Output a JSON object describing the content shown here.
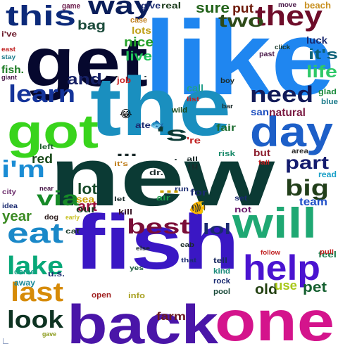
{
  "words": [
    {
      "text": "like",
      "color": "#1f86f0"
    },
    {
      "text": "get",
      "color": "#06082e"
    },
    {
      "text": "the",
      "color": "#1a8fbf"
    },
    {
      "text": "new",
      "color": "#0b3a34"
    },
    {
      "text": "fish",
      "color": "#3a17c4"
    },
    {
      "text": "back",
      "color": "#4a15a8"
    },
    {
      "text": "one",
      "color": "#d4148c"
    },
    {
      "text": "got",
      "color": "#38d41c"
    },
    {
      "text": "day",
      "color": "#1d5fc8"
    },
    {
      "text": "will",
      "color": "#1fa873"
    },
    {
      "text": "this",
      "color": "#0c2a7a"
    },
    {
      "text": "they",
      "color": "#6e0d2a"
    },
    {
      "text": "way",
      "color": "#0a1e5a"
    },
    {
      "text": "help",
      "color": "#4a13d0"
    },
    {
      "text": "eat",
      "color": "#1a88c8"
    },
    {
      "text": "last",
      "color": "#d68b08"
    },
    {
      "text": "lake",
      "color": "#08a878"
    },
    {
      "text": "look",
      "color": "#0e3322"
    },
    {
      "text": "learn",
      "color": "#14349a"
    },
    {
      "text": "need",
      "color": "#121a58"
    },
    {
      "text": "best",
      "color": "#7a0e38"
    },
    {
      "text": "big",
      "color": "#223f1a"
    },
    {
      "text": "part",
      "color": "#141c6e"
    },
    {
      "text": "i'm",
      "color": "#1a8cd4"
    },
    {
      "text": "via",
      "color": "#178a28"
    },
    {
      "text": "two",
      "color": "#2d4a18"
    },
    {
      "text": "it's",
      "color": "#0c6078"
    },
    {
      "text": "life",
      "color": "#2ec868"
    },
    {
      "text": "lol",
      "color": "#1a2a70"
    },
    {
      "text": "old",
      "color": "#234012"
    },
    {
      "text": "use",
      "color": "#a8c81a"
    },
    {
      "text": "pet",
      "color": "#156030"
    },
    {
      "text": "sure",
      "color": "#22631a"
    },
    {
      "text": "put",
      "color": "#6e1a0a"
    },
    {
      "text": "and",
      "color": "#162064"
    },
    {
      "text": "year",
      "color": "#3a8a22"
    },
    {
      "text": "lot",
      "color": "#184a2a"
    },
    {
      "text": "art",
      "color": "#9a0e3a"
    },
    {
      "text": "sea",
      "color": "#c8a000"
    },
    {
      "text": "our",
      "color": "#1a3a22"
    },
    {
      "text": "farm",
      "color": "#6a1a22"
    },
    {
      "text": "bag",
      "color": "#1a4a3a"
    },
    {
      "text": "nice",
      "color": "#24a028"
    },
    {
      "text": "live",
      "color": "#1ec058"
    },
    {
      "text": "lots",
      "color": "#c0a018"
    },
    {
      "text": "luck",
      "color": "#1a2a70"
    },
    {
      "text": "fair",
      "color": "#1e6e32"
    },
    {
      "text": "san",
      "color": "#1e50c0"
    },
    {
      "text": "natural",
      "color": "#7a1a42"
    },
    {
      "text": "red",
      "color": "#1a4a1a"
    },
    {
      "text": "team",
      "color": "#2050c8"
    },
    {
      "text": "give",
      "color": "#1a2a70"
    },
    {
      "text": "real",
      "color": "#1a3a1a"
    },
    {
      "text": "fish.",
      "color": "#1a7a22"
    },
    {
      "text": "call",
      "color": "#22a08a"
    },
    {
      "text": "game",
      "color": "#6a1a4a"
    },
    {
      "text": "i've",
      "color": "#6a1a2a"
    },
    {
      "text": "case",
      "color": "#c08020"
    },
    {
      "text": "move",
      "color": "#4a1a4a"
    },
    {
      "text": "beach",
      "color": "#c89020"
    },
    {
      "text": "wild",
      "color": "#1a4a1a"
    },
    {
      "text": "ate",
      "color": "#1a2a70"
    },
    {
      "text": "job",
      "color": "#c82020"
    },
    {
      "text": "kill",
      "color": "#3a1a2a"
    },
    {
      "text": "tell",
      "color": "#1a2a60"
    },
    {
      "text": "kind",
      "color": "#1a8a7a"
    },
    {
      "text": "rock",
      "color": "#1a2a70"
    },
    {
      "text": "pool",
      "color": "#1a4a3a"
    },
    {
      "text": "feel",
      "color": "#1a7a4a"
    },
    {
      "text": "away",
      "color": "#1a8a9a"
    },
    {
      "text": "u.s.",
      "color": "#1a2a70"
    },
    {
      "text": "came",
      "color": "#1aa08a"
    },
    {
      "text": "open",
      "color": "#a02020"
    },
    {
      "text": "info",
      "color": "#a8a020"
    },
    {
      "text": "gave",
      "color": "#8a9a1a"
    },
    {
      "text": "dog",
      "color": "#2a1a1a"
    },
    {
      "text": "early",
      "color": "#c8c020"
    },
    {
      "text": "cat",
      "color": "#1a3a2a"
    },
    {
      "text": "idea",
      "color": "#1a2a70"
    },
    {
      "text": "city",
      "color": "#6a2a6a"
    },
    {
      "text": "near",
      "color": "#4a1a4a"
    },
    {
      "text": "left",
      "color": "#1a5a2a"
    },
    {
      "text": "risk",
      "color": "#1a8a6a"
    },
    {
      "text": "but",
      "color": "#8a1a2a"
    },
    {
      "text": "area",
      "color": "#2a2a2a"
    },
    {
      "text": "read",
      "color": "#1aa0c8"
    },
    {
      "text": "glad",
      "color": "#1a8a3a"
    },
    {
      "text": "blue",
      "color": "#1a7a8a"
    },
    {
      "text": "boy",
      "color": "#1a2a2a"
    },
    {
      "text": "list",
      "color": "#c02020"
    },
    {
      "text": "past",
      "color": "#4a1a4a"
    },
    {
      "text": "click",
      "color": "#1a3a2a"
    },
    {
      "text": "east",
      "color": "#c02020"
    },
    {
      "text": "stay",
      "color": "#1a7a8a"
    },
    {
      "text": "giant",
      "color": "#4a1a4a"
    },
    {
      "text": "not",
      "color": "#6a1a6a"
    },
    {
      "text": "set",
      "color": "#1a2a70"
    },
    {
      "text": "for",
      "color": "#1a2a70"
    },
    {
      "text": "run",
      "color": "#1a2a70"
    },
    {
      "text": "air",
      "color": "#1a9a4a"
    },
    {
      "text": "let",
      "color": "#1a2a2a"
    },
    {
      "text": "eab",
      "color": "#1a2a2a"
    },
    {
      "text": "that",
      "color": "#1a2a70"
    },
    {
      "text": "else",
      "color": "#1a2a2a"
    },
    {
      "text": "yes",
      "color": "#1a5a3a"
    },
    {
      "text": "pull",
      "color": "#c02020"
    },
    {
      "text": "follow",
      "color": "#c02020"
    },
    {
      "text": "all",
      "color": "#1a2a2a"
    },
    {
      "text": "!!!",
      "color": "#1a2a2a"
    },
    {
      "text": "fall",
      "color": "#c02020"
    },
    {
      "text": "it's",
      "color": "#c08020"
    },
    {
      "text": "dr.",
      "color": "#1a2a2a"
    },
    {
      "text": "bar",
      "color": "#1a2a2a"
    },
    {
      "text": "'s",
      "color": "#0b3a34"
    },
    {
      "text": "'re",
      "color": "#c02020"
    },
    {
      "text": "...",
      "color": "#1a2a2a"
    },
    {
      "text": "...",
      "color": "#c8a000"
    },
    {
      "text": "·",
      "color": "#1a2a2a"
    },
    {
      "text": "·",
      "color": "#1a2a2a"
    },
    {
      "text": "·",
      "color": "#1a2a2a"
    },
    {
      "text": "·",
      "color": "#1a2a2a"
    }
  ],
  "emoji": [
    {
      "glyph": "😂",
      "icon": "laughing-face-icon"
    },
    {
      "glyph": "🐟",
      "icon": "fish-icon"
    },
    {
      "glyph": "🐠",
      "icon": "tropical-fish-icon"
    }
  ]
}
